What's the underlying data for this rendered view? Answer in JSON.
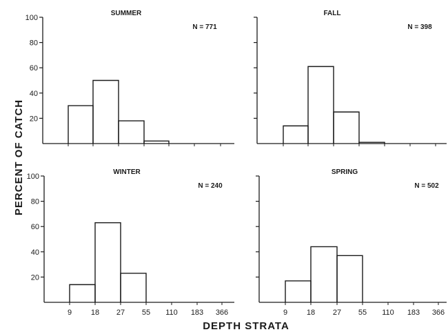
{
  "chart_data": {
    "type": "bar",
    "ylabel": "PERCENT OF CATCH",
    "xlabel": "DEPTH STRATA",
    "x_ticks": [
      "9",
      "18",
      "27",
      "55",
      "110",
      "183",
      "366"
    ],
    "y_ticks": [
      20,
      40,
      60,
      80,
      100
    ],
    "ylim": [
      0,
      100
    ],
    "panels": [
      {
        "title": "SUMMER",
        "n_label": "N = 771",
        "values": [
          30,
          50,
          18,
          2,
          0,
          0
        ]
      },
      {
        "title": "FALL",
        "n_label": "N = 398",
        "values": [
          14,
          61,
          25,
          1,
          0,
          0
        ]
      },
      {
        "title": "WINTER",
        "n_label": "N = 240",
        "values": [
          14,
          63,
          23,
          0,
          0,
          0
        ]
      },
      {
        "title": "SPRING",
        "n_label": "N = 502",
        "values": [
          17,
          44,
          37,
          0,
          0,
          0
        ]
      }
    ]
  }
}
